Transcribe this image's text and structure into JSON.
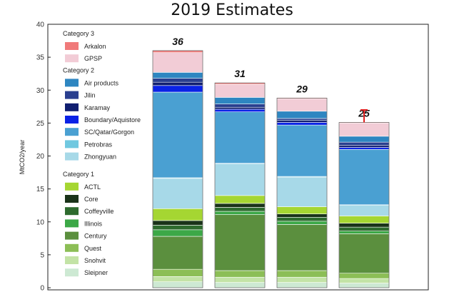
{
  "chart_data": {
    "type": "bar",
    "stacked": true,
    "title": "2019 Estimates",
    "ylabel": "MtCO2/year",
    "xlabel": "",
    "ylim": [
      0,
      40
    ],
    "yticks": [
      "0",
      "5",
      "10",
      "15",
      "20",
      "25",
      "30",
      "35",
      "40"
    ],
    "categories": [
      "",
      "",
      "",
      ""
    ],
    "totals": [
      "36",
      "31",
      "29",
      "25"
    ],
    "error_bar_on_last": {
      "bar": 3,
      "upper": 27
    },
    "legend_groups": [
      {
        "title": "Category 3",
        "items": [
          "Arkalon",
          "GPSP"
        ]
      },
      {
        "title": "Category 2",
        "items": [
          "Air products",
          "Jilin",
          "Karamay",
          "Boundary/Aquistore",
          "SC/Qatar/Gorgon",
          "Petrobras",
          "Zhongyuan"
        ]
      },
      {
        "title": "Category 1",
        "items": [
          "ACTL",
          "Core",
          "Coffeyville",
          "Illinois",
          "Century",
          "Quest",
          "Snohvit",
          "Sleipner"
        ]
      }
    ],
    "series": [
      {
        "name": "Sleipner",
        "color": "#cde9d3",
        "values": [
          0.9,
          0.8,
          0.8,
          0.7
        ]
      },
      {
        "name": "Snohvit",
        "color": "#c3e3a6",
        "values": [
          0.8,
          0.8,
          0.8,
          0.7
        ]
      },
      {
        "name": "Quest",
        "color": "#8cbe56",
        "values": [
          1.1,
          1.0,
          1.0,
          0.8
        ]
      },
      {
        "name": "Century",
        "color": "#5b8f3e",
        "values": [
          5.0,
          8.5,
          7.0,
          6.0
        ]
      },
      {
        "name": "Illinois",
        "color": "#3ca847",
        "values": [
          1.0,
          0.5,
          0.5,
          0.4
        ]
      },
      {
        "name": "Coffeyville",
        "color": "#2e6b2e",
        "values": [
          0.7,
          0.6,
          0.6,
          0.6
        ]
      },
      {
        "name": "Core",
        "color": "#1a3319",
        "values": [
          0.7,
          0.6,
          0.5,
          0.6
        ]
      },
      {
        "name": "ACTL",
        "color": "#a5d632",
        "values": [
          1.8,
          1.2,
          1.1,
          1.1
        ]
      },
      {
        "name": "Zhongyuan",
        "color": "#a7d9e8",
        "values": [
          4.6,
          4.8,
          4.5,
          1.6
        ]
      },
      {
        "name": "Petrobras",
        "color": "#70c8e0",
        "values": [
          0.1,
          0.1,
          0.1,
          0.1
        ]
      },
      {
        "name": "SC/Qatar/Gorgon",
        "color": "#4aa0d2",
        "values": [
          13.0,
          7.8,
          7.8,
          8.4
        ]
      },
      {
        "name": "Boundary/Aquistore",
        "color": "#0a22e6",
        "values": [
          1.0,
          0.4,
          0.4,
          0.3
        ]
      },
      {
        "name": "Karamay",
        "color": "#101e70",
        "values": [
          0.5,
          0.3,
          0.3,
          0.3
        ]
      },
      {
        "name": "Jilin",
        "color": "#2a3f8f",
        "values": [
          0.6,
          0.5,
          0.3,
          0.5
        ]
      },
      {
        "name": "Air products",
        "color": "#2e86c1",
        "values": [
          0.9,
          1.0,
          1.1,
          0.9
        ]
      },
      {
        "name": "GPSP",
        "color": "#f2ccd6",
        "values": [
          3.0,
          2.0,
          1.9,
          2.0
        ]
      },
      {
        "name": "Arkalon",
        "color": "#f07a7a",
        "values": [
          0.3,
          0.2,
          0.1,
          0.1
        ]
      }
    ]
  }
}
